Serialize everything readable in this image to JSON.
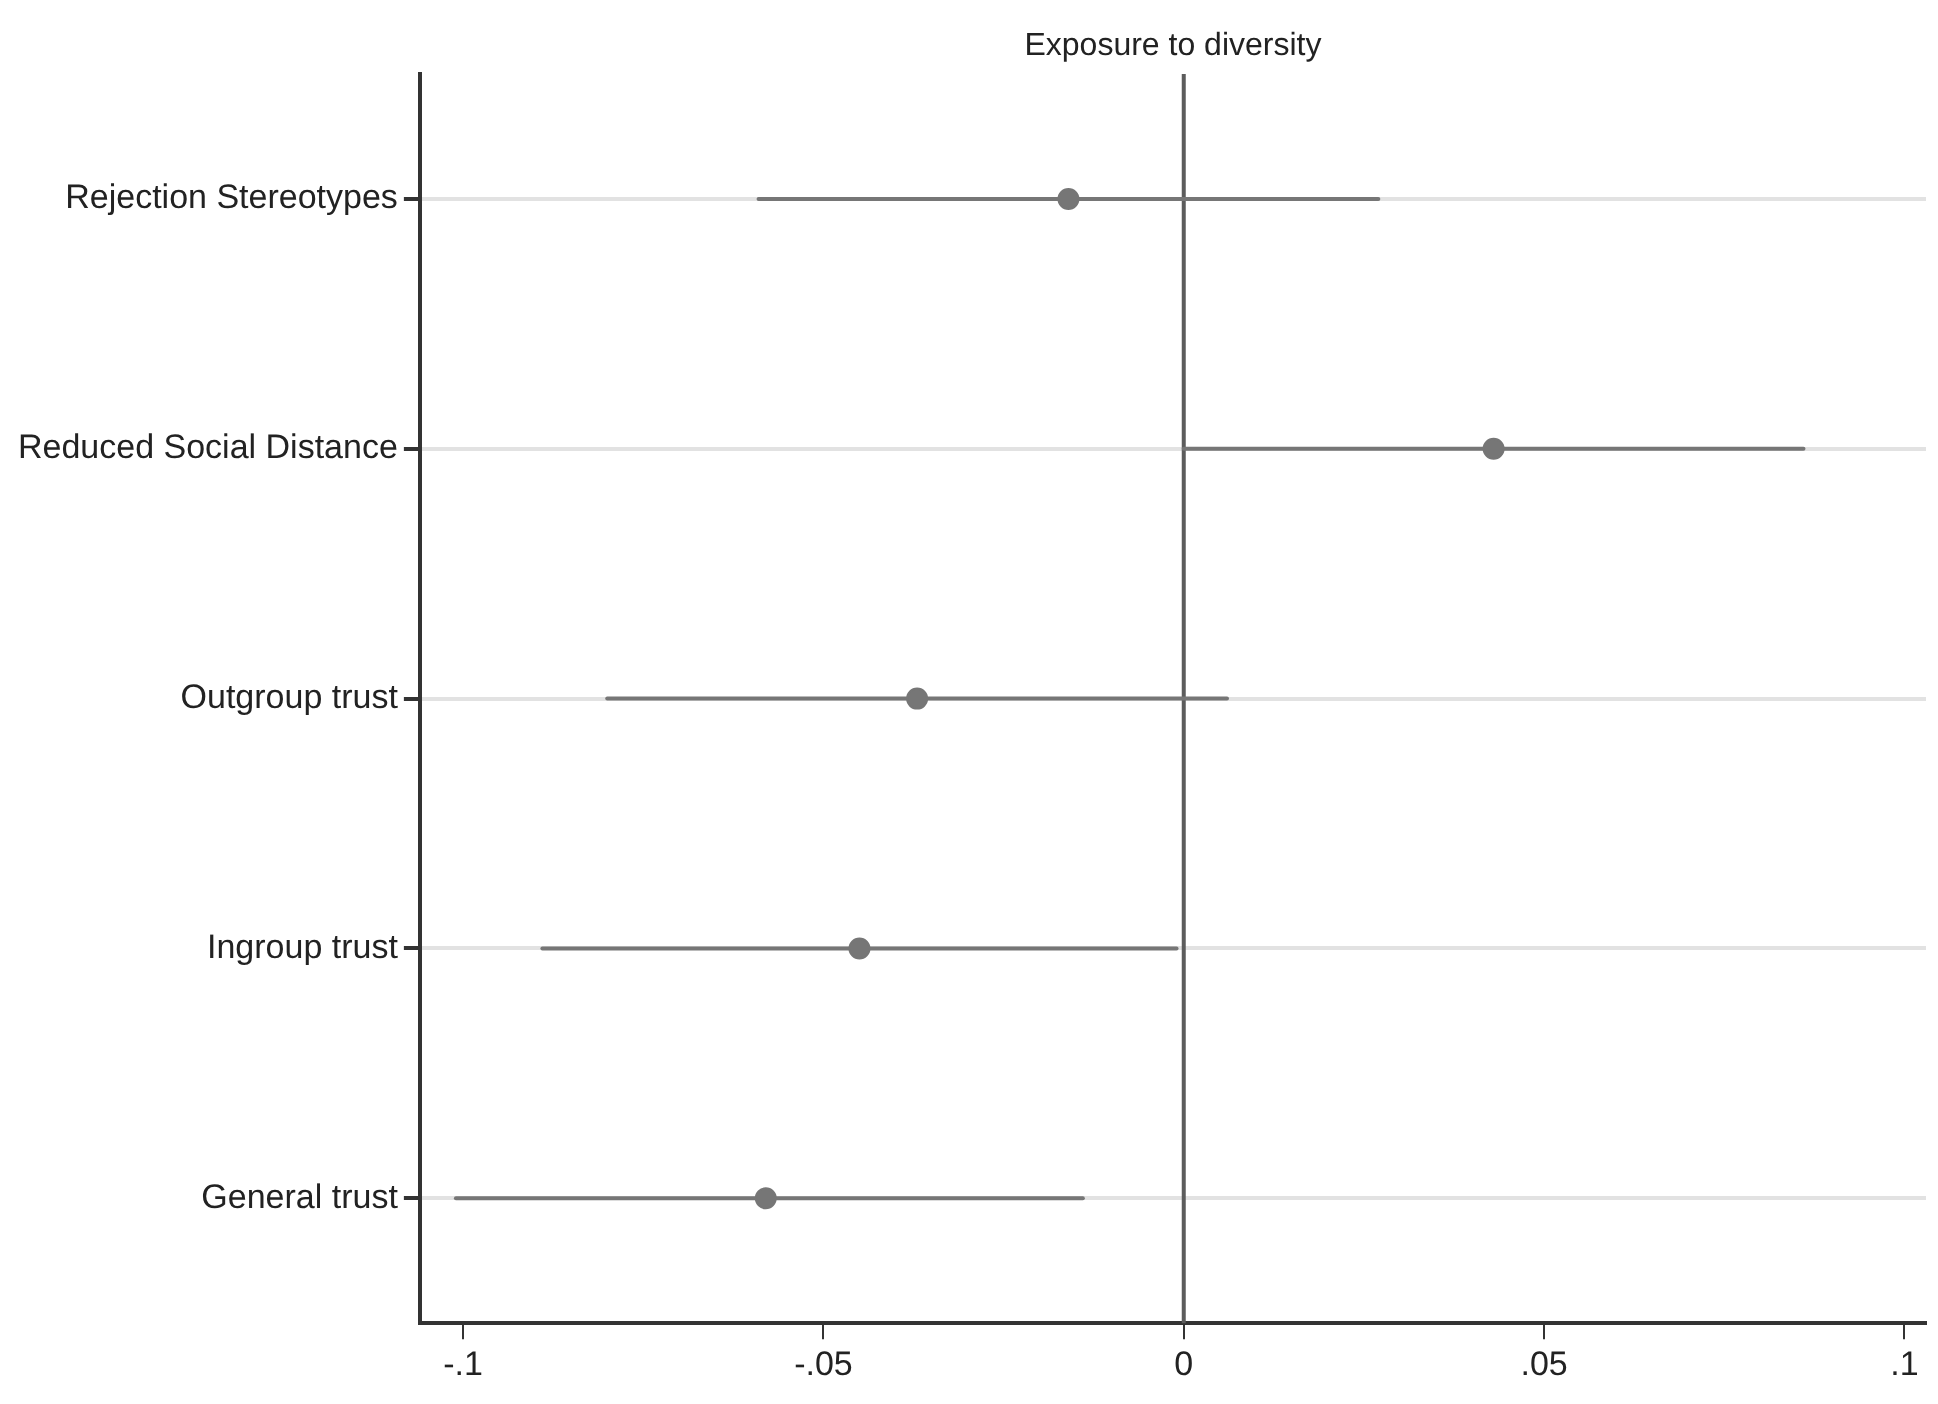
{
  "chart_data": {
    "type": "scatter",
    "orientation": "horizontal",
    "title": "Exposure to diversity",
    "categories": [
      "Rejection Stereotypes",
      "Reduced Social Distance",
      "Outgroup trust",
      "Ingroup trust",
      "General trust"
    ],
    "values": [
      -0.016,
      0.043,
      -0.037,
      -0.045,
      -0.058
    ],
    "errors": [
      [
        -0.059,
        0.027
      ],
      [
        0.0,
        0.086
      ],
      [
        -0.08,
        0.006
      ],
      [
        -0.089,
        -0.001
      ],
      [
        -0.101,
        -0.014
      ]
    ],
    "color": "#767676",
    "xlim": [
      -0.106,
      0.103
    ],
    "xticks": [
      {
        "value": -0.1,
        "label": "-.1"
      },
      {
        "value": -0.05,
        "label": "-.05"
      },
      0,
      {
        "value": 0.05,
        "label": ".05"
      },
      {
        "value": 0.1,
        "label": ".1"
      }
    ],
    "ref_lines": [
      {
        "axis": "x",
        "value": 0,
        "color": "#5c5c5c"
      }
    ],
    "grid": "y",
    "marker": "circle"
  }
}
